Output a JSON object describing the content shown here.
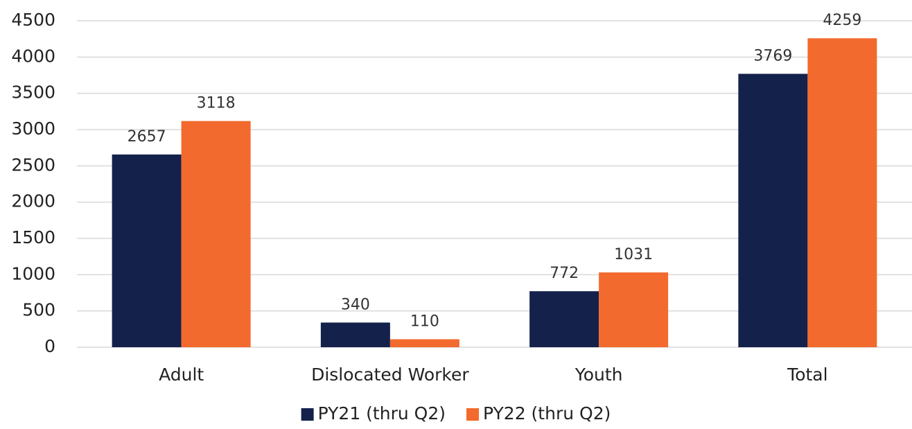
{
  "chart_data": {
    "type": "bar",
    "categories": [
      "Adult",
      "Dislocated Worker",
      "Youth",
      "Total"
    ],
    "series": [
      {
        "name": "PY21 (thru Q2)",
        "color": "#14214b",
        "values": [
          2657,
          340,
          772,
          3769
        ]
      },
      {
        "name": "PY22 (thru Q2)",
        "color": "#f26a2e",
        "values": [
          3118,
          110,
          1031,
          4259
        ]
      }
    ],
    "ylim": [
      0,
      4500
    ],
    "yticks": [
      0,
      500,
      1000,
      1500,
      2000,
      2500,
      3000,
      3500,
      4000,
      4500
    ],
    "grid": true,
    "legend": "bottom"
  }
}
